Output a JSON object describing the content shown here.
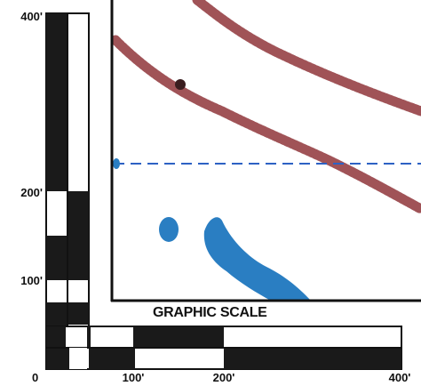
{
  "map": {
    "title": "GRAPHIC SCALE",
    "colors": {
      "boundary_line": "#9b4a4e",
      "water": "#2a7ec2",
      "dashed_line": "#2d62c4",
      "frame": "#111111",
      "scale_dark": "#1a1a1a",
      "scale_light": "#ffffff"
    },
    "features": [
      {
        "name": "upper-boundary-line",
        "type": "dotted-curve",
        "color_key": "boundary_line"
      },
      {
        "name": "lower-boundary-line",
        "type": "dotted-curve",
        "color_key": "boundary_line"
      },
      {
        "name": "dashed-reference-line",
        "type": "dashed-line",
        "color_key": "dashed_line"
      },
      {
        "name": "water-spot-small",
        "type": "water",
        "color_key": "water"
      },
      {
        "name": "water-channel",
        "type": "water",
        "color_key": "water"
      }
    ]
  },
  "scale": {
    "horizontal_ticks": [
      {
        "id": "h0",
        "label": "0",
        "value": 0
      },
      {
        "id": "h100",
        "label": "100'",
        "value": 100
      },
      {
        "id": "h200",
        "label": "200'",
        "value": 200
      },
      {
        "id": "h400",
        "label": "400'",
        "value": 400
      }
    ],
    "vertical_ticks": [
      {
        "id": "v400",
        "label": "400'",
        "value": 400
      },
      {
        "id": "v200",
        "label": "200'",
        "value": 200
      },
      {
        "id": "v100",
        "label": "100'",
        "value": 100
      }
    ]
  }
}
